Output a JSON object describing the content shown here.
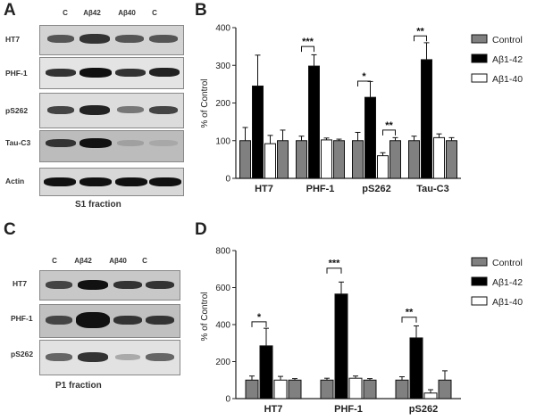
{
  "panels": {
    "A": "A",
    "B": "B",
    "C": "C",
    "D": "D"
  },
  "blot_A": {
    "lanes": [
      "C",
      "Aβ42",
      "Aβ40",
      "C"
    ],
    "rows": [
      "HT7",
      "PHF-1",
      "pS262",
      "Tau-C3",
      "Actin"
    ],
    "fraction": "S1 fraction"
  },
  "blot_C": {
    "lanes": [
      "C",
      "Aβ42",
      "Aβ40",
      "C"
    ],
    "rows": [
      "HT7",
      "PHF-1",
      "pS262"
    ],
    "fraction": "P1 fraction"
  },
  "colors": {
    "control": "#808080",
    "abeta42": "#000000",
    "abeta40": "#ffffff"
  },
  "chart_data": [
    {
      "type": "bar",
      "panel": "B",
      "categories": [
        "HT7",
        "PHF-1",
        "pS262",
        "Tau-C3"
      ],
      "ylabel": "% of Control",
      "ylim": [
        0,
        400
      ],
      "yticks": [
        0,
        100,
        200,
        300,
        400
      ],
      "legend_position": "right",
      "series": [
        {
          "name": "Control",
          "values": [
            100,
            100,
            100,
            100
          ],
          "errors": [
            35,
            12,
            22,
            12
          ],
          "color": "#808080"
        },
        {
          "name": "Aβ1-42",
          "values": [
            245,
            298,
            215,
            315
          ],
          "errors": [
            82,
            30,
            42,
            45
          ],
          "color": "#000000"
        },
        {
          "name": "Aβ1-40",
          "values": [
            92,
            102,
            60,
            108
          ],
          "errors": [
            22,
            5,
            8,
            10
          ],
          "color": "#ffffff"
        },
        {
          "name": "",
          "values": [
            100,
            100,
            100,
            100
          ],
          "errors": [
            28,
            4,
            8,
            8
          ],
          "color": "#808080"
        }
      ],
      "annotations": [
        "***",
        "*",
        "**",
        "**"
      ]
    },
    {
      "type": "bar",
      "panel": "D",
      "categories": [
        "HT7",
        "PHF-1",
        "pS262"
      ],
      "ylabel": "% of Control",
      "ylim": [
        0,
        800
      ],
      "yticks": [
        0,
        200,
        400,
        600,
        800
      ],
      "legend_position": "right",
      "series": [
        {
          "name": "Control",
          "values": [
            100,
            100,
            100
          ],
          "errors": [
            22,
            10,
            18
          ],
          "color": "#808080"
        },
        {
          "name": "Aβ1-42",
          "values": [
            285,
            565,
            328
          ],
          "errors": [
            95,
            65,
            65
          ],
          "color": "#000000"
        },
        {
          "name": "Aβ1-40",
          "values": [
            100,
            110,
            30
          ],
          "errors": [
            20,
            12,
            18
          ],
          "color": "#ffffff"
        },
        {
          "name": "",
          "values": [
            100,
            100,
            100
          ],
          "errors": [
            8,
            8,
            50
          ],
          "color": "#808080"
        }
      ],
      "annotations": [
        "*",
        "***",
        "**"
      ]
    }
  ]
}
